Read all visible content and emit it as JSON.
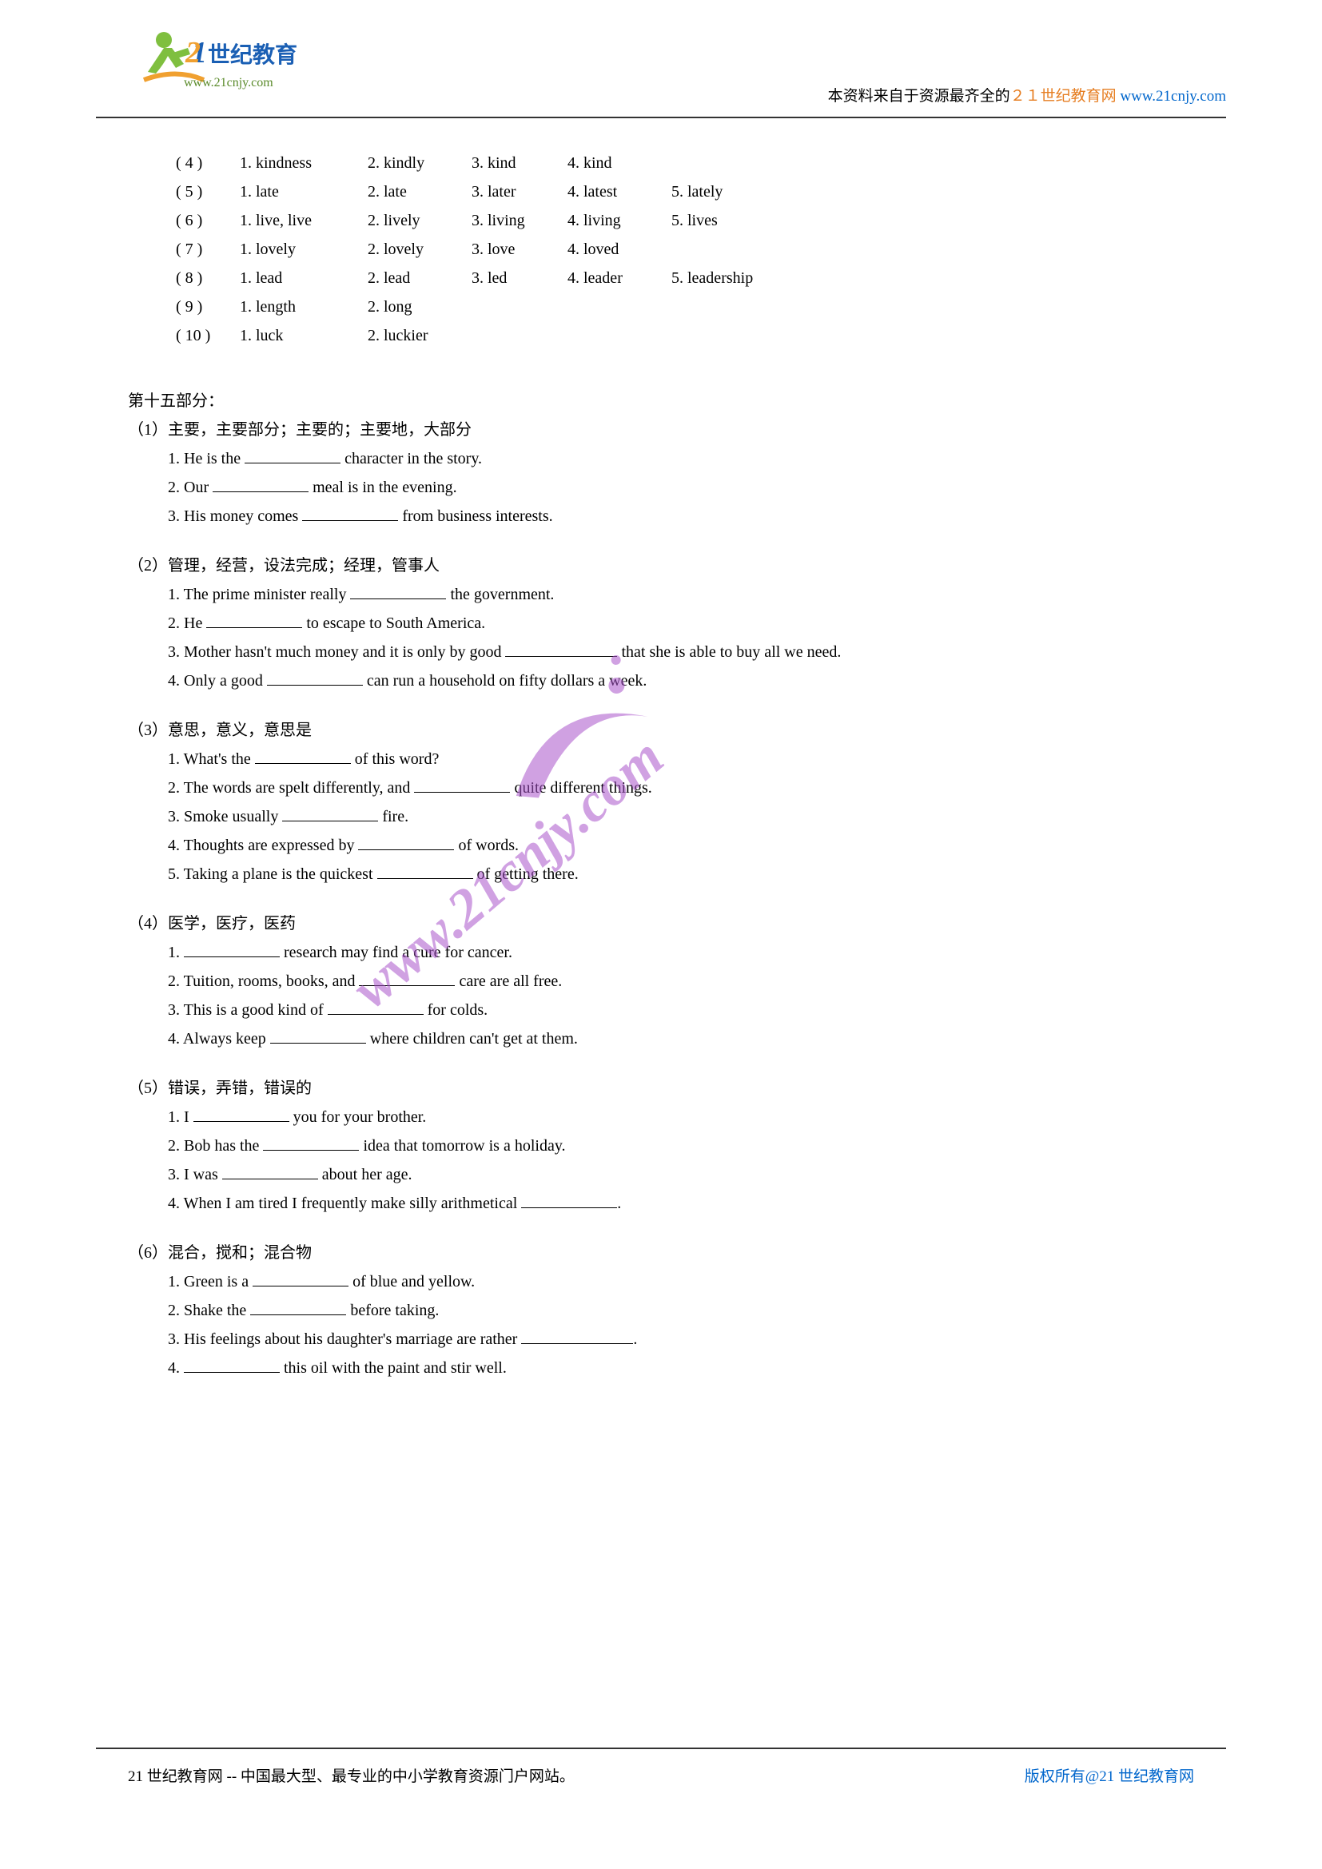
{
  "header": {
    "text_prefix": "本资料来自于资源最齐全的",
    "text_orange": "２１世纪教育网",
    "text_url": " www.21cnjy.com",
    "logo": {
      "cn_text": "世纪教育",
      "url_text": "www.21cnjy.com",
      "figure_color": "#7fbf3f",
      "text_color": "#1a5fb4"
    }
  },
  "answers": [
    {
      "n": "( 4 )",
      "cells": [
        "1. kindness",
        "2. kindly",
        "3. kind",
        "4. kind",
        ""
      ]
    },
    {
      "n": "( 5 )",
      "cells": [
        "1. late",
        "2. late",
        "3. later",
        "4. latest",
        "5. lately"
      ]
    },
    {
      "n": "( 6 )",
      "cells": [
        "1. live, live",
        "2. lively",
        "3. living",
        "4. living",
        "5. lives"
      ]
    },
    {
      "n": "( 7 )",
      "cells": [
        "1. lovely",
        "2. lovely",
        "3. love",
        "4. loved",
        ""
      ]
    },
    {
      "n": "( 8 )",
      "cells": [
        "1. lead",
        "2. lead",
        "3. led",
        "4. leader",
        "5. leadership"
      ]
    },
    {
      "n": "( 9 )",
      "cells": [
        "1. length",
        "2. long",
        "",
        "",
        ""
      ]
    },
    {
      "n": "( 10 )",
      "cells": [
        "1. luck",
        "2. luckier",
        "",
        "",
        ""
      ]
    }
  ],
  "cell_widths": [
    160,
    130,
    120,
    130,
    150
  ],
  "section15": {
    "title": "第十五部分：",
    "groups": [
      {
        "num": "（1）",
        "heading": "主要，主要部分；主要的；主要地，大部分",
        "items": [
          {
            "tokens": [
              "1. He is the ",
              "BLANK",
              " character in the story."
            ]
          },
          {
            "tokens": [
              "2. Our ",
              "BLANK",
              " meal is in the evening."
            ]
          },
          {
            "tokens": [
              "3. His money comes ",
              "BLANK",
              " from business interests."
            ]
          }
        ]
      },
      {
        "num": "（2）",
        "heading": "管理，经营，设法完成；经理，管事人",
        "items": [
          {
            "tokens": [
              "1. The prime minister really ",
              "BLANK",
              " the government."
            ]
          },
          {
            "tokens": [
              "2. He ",
              "BLANK",
              " to escape to South America."
            ]
          },
          {
            "tokens": [
              "3. Mother hasn't much money and it is only by good ",
              "BLANKL",
              " that she is able to buy all we need."
            ]
          },
          {
            "tokens": [
              "4. Only a good ",
              "BLANK",
              " can run a household on fifty dollars a week."
            ]
          }
        ]
      },
      {
        "num": "（3）",
        "heading": "意思，意义，意思是",
        "items": [
          {
            "tokens": [
              "1. What's the ",
              "BLANK",
              " of this word?"
            ]
          },
          {
            "tokens": [
              "2. The words are spelt differently, and ",
              "BLANK",
              " quite different things."
            ]
          },
          {
            "tokens": [
              "3. Smoke usually ",
              "BLANK",
              " fire."
            ]
          },
          {
            "tokens": [
              "4. Thoughts are expressed by ",
              "BLANK",
              " of words."
            ]
          },
          {
            "tokens": [
              "5. Taking a plane is the quickest ",
              "BLANK",
              " of getting there."
            ]
          }
        ]
      },
      {
        "num": "（4）",
        "heading": "医学，医疗，医药",
        "items": [
          {
            "tokens": [
              "1. ",
              "BLANK",
              " research may find a cure for cancer."
            ]
          },
          {
            "tokens": [
              "2. Tuition, rooms, books, and ",
              "BLANK",
              " care are all free."
            ]
          },
          {
            "tokens": [
              "3. This is a good kind of ",
              "BLANK",
              " for colds."
            ]
          },
          {
            "tokens": [
              "4. Always keep ",
              "BLANK",
              " where children can't get at them."
            ]
          }
        ]
      },
      {
        "num": "（5）",
        "heading": "错误，弄错，错误的",
        "items": [
          {
            "tokens": [
              "1. I ",
              "BLANK",
              " you for your brother."
            ]
          },
          {
            "tokens": [
              "2. Bob has the ",
              "BLANK",
              " idea that tomorrow is a holiday."
            ]
          },
          {
            "tokens": [
              "3. I was ",
              "BLANK",
              " about her age."
            ]
          },
          {
            "tokens": [
              "4. When I am tired I frequently make silly arithmetical ",
              "BLANK",
              "."
            ]
          }
        ]
      },
      {
        "num": "（6）",
        "heading": "混合，搅和；混合物",
        "items": [
          {
            "tokens": [
              "1. Green is a ",
              "BLANK",
              " of blue and yellow."
            ]
          },
          {
            "tokens": [
              "2. Shake the ",
              "BLANK",
              " before taking."
            ]
          },
          {
            "tokens": [
              "3. His feelings about his daughter's marriage are rather ",
              "BLANKL",
              "."
            ]
          },
          {
            "tokens": [
              "4. ",
              "BLANK",
              " this oil with the paint and stir well."
            ]
          }
        ]
      }
    ]
  },
  "watermark": {
    "text": "www.21cnjy.com",
    "color": "#aa55cc",
    "angle": -40,
    "opacity": 0.55,
    "fontsize": 70
  },
  "footer": {
    "left": "21 世纪教育网 -- 中国最大型、最专业的中小学教育资源门户网站。",
    "right_prefix": "版权所有@",
    "right_link": "21 世纪教育网"
  }
}
